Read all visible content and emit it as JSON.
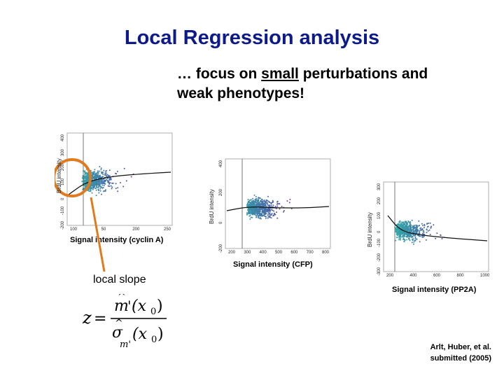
{
  "slide": {
    "title": "Local Regression analysis",
    "subtitle_line1_pre": "… focus on ",
    "subtitle_line1_emph": "small",
    "subtitle_line1_post": " perturbations and",
    "subtitle_line2": "weak phenotypes!",
    "local_slope_label": "local slope",
    "citation_line1": "Arlt, Huber, et al.",
    "citation_line2": "submitted (2005)"
  },
  "formula": {
    "lhs": "z",
    "equals": "=",
    "num_m": "m",
    "num_prime": "'",
    "num_paren": "(x",
    "num_sub": "0",
    "num_close": ")",
    "den_sigma": "σ",
    "den_sub": "m'",
    "den_paren": "(x",
    "den_sub0": "0",
    "den_close": ")"
  },
  "plots": [
    {
      "name": "cyclin-a",
      "ylabel": "BrdU intensity",
      "xlabel": "Signal intensity (cyclin A)",
      "yticks": [
        "-200",
        "-100",
        "0",
        "100",
        "200",
        "300",
        "400"
      ],
      "xticks": [
        "100",
        "50",
        "200",
        "250"
      ]
    },
    {
      "name": "cfp",
      "ylabel": "BrdU intensity",
      "xlabel": "Signal intensity (CFP)",
      "yticks": [
        "-200",
        "0",
        "200",
        "400"
      ],
      "xticks": [
        "200",
        "300",
        "400",
        "500",
        "600",
        "700",
        "800"
      ]
    },
    {
      "name": "pp2a",
      "ylabel": "BrdU intensity",
      "xlabel": "Signal intensity (PP2A)",
      "yticks": [
        "-300",
        "-200",
        "-100",
        "0",
        "100",
        "200",
        "300"
      ],
      "xticks": [
        "200",
        "400",
        "600",
        "800",
        "1000"
      ]
    }
  ],
  "colors": {
    "title": "#0c1a8a",
    "highlight_circle": "#e07a1f",
    "point_low": "#2fb5a8",
    "point_mid": "#4a5ba8",
    "point_high": "#c42838"
  }
}
